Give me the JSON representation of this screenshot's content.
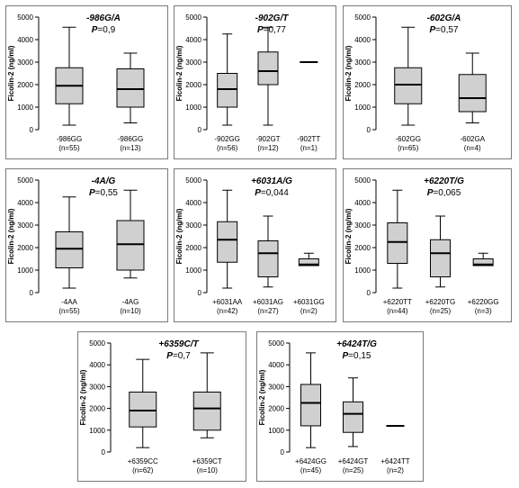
{
  "chart_data": [
    {
      "type": "box",
      "title": "-986G/A",
      "p_label": "P",
      "p_text": "=0,9",
      "ylabel": "Ficolin-2 (ng/ml)",
      "ylim": [
        0,
        5000
      ],
      "yticks": [
        "0",
        "1000",
        "2000",
        "3000",
        "4000",
        "5000"
      ],
      "categories": [
        {
          "label": "-986GG",
          "n": "(n=55)",
          "min": 200,
          "q1": 1150,
          "median": 1950,
          "q3": 2750,
          "max": 4550
        },
        {
          "label": "-986GG",
          "n": "(n=13)",
          "min": 300,
          "q1": 1000,
          "median": 1800,
          "q3": 2700,
          "max": 3400
        }
      ]
    },
    {
      "type": "box",
      "title": "-902G/T",
      "p_label": "P",
      "p_text": "=0,77",
      "ylabel": "Ficolin-2 (ng/ml)",
      "ylim": [
        0,
        5000
      ],
      "yticks": [
        "0",
        "1000",
        "2000",
        "3000",
        "4000",
        "5000"
      ],
      "categories": [
        {
          "label": "-902GG",
          "n": "(n=56)",
          "min": 200,
          "q1": 1000,
          "median": 1800,
          "q3": 2500,
          "max": 4250
        },
        {
          "label": "-902GT",
          "n": "(n=12)",
          "min": 200,
          "q1": 2000,
          "median": 2600,
          "q3": 3450,
          "max": 4550
        },
        {
          "label": "-902TT",
          "n": "(n=1)",
          "min": 3000,
          "q1": 3000,
          "median": 3000,
          "q3": 3000,
          "max": 3000
        }
      ]
    },
    {
      "type": "box",
      "title": "-602G/A",
      "p_label": "P",
      "p_text": "=0,57",
      "ylabel": "Ficolin-2 (ng/ml)",
      "ylim": [
        0,
        5000
      ],
      "yticks": [
        "0",
        "1000",
        "2000",
        "3000",
        "4000",
        "5000"
      ],
      "categories": [
        {
          "label": "-602GG",
          "n": "(n=65)",
          "min": 200,
          "q1": 1150,
          "median": 2000,
          "q3": 2750,
          "max": 4550
        },
        {
          "label": "-602GA",
          "n": "(n=4)",
          "min": 300,
          "q1": 800,
          "median": 1400,
          "q3": 2450,
          "max": 3400
        }
      ]
    },
    {
      "type": "box",
      "title": "-4A/G",
      "p_label": "P",
      "p_text": "=0,55",
      "ylabel": "Ficolin-2 (ng/ml)",
      "ylim": [
        0,
        5000
      ],
      "yticks": [
        "0",
        "1000",
        "2000",
        "3000",
        "4000",
        "5000"
      ],
      "categories": [
        {
          "label": "-4AA",
          "n": "(n=55)",
          "min": 200,
          "q1": 1100,
          "median": 1950,
          "q3": 2700,
          "max": 4250
        },
        {
          "label": "-4AG",
          "n": "(n=10)",
          "min": 650,
          "q1": 1000,
          "median": 2150,
          "q3": 3200,
          "max": 4550
        }
      ]
    },
    {
      "type": "box",
      "title": "+6031A/G",
      "p_label": "P",
      "p_text": "=0,044",
      "ylabel": "Ficolin-2 (ng/ml)",
      "ylim": [
        0,
        5000
      ],
      "yticks": [
        "0",
        "1000",
        "2000",
        "3000",
        "4000",
        "5000"
      ],
      "categories": [
        {
          "label": "+6031AA",
          "n": "(n=42)",
          "min": 200,
          "q1": 1350,
          "median": 2350,
          "q3": 3150,
          "max": 4550
        },
        {
          "label": "+6031AG",
          "n": "(n=27)",
          "min": 250,
          "q1": 700,
          "median": 1750,
          "q3": 2300,
          "max": 3400
        },
        {
          "label": "+6031GG",
          "n": "(n=2)",
          "min": 1200,
          "q1": 1200,
          "median": 1250,
          "q3": 1500,
          "max": 1750
        }
      ]
    },
    {
      "type": "box",
      "title": "+6220T/G",
      "p_label": "P",
      "p_text": "=0,065",
      "ylabel": "Ficolin-2 (ng/ml)",
      "ylim": [
        0,
        5000
      ],
      "yticks": [
        "0",
        "1000",
        "2000",
        "3000",
        "4000",
        "5000"
      ],
      "categories": [
        {
          "label": "+6220TT",
          "n": "(n=44)",
          "min": 200,
          "q1": 1300,
          "median": 2250,
          "q3": 3100,
          "max": 4550
        },
        {
          "label": "+6220TG",
          "n": "(n=25)",
          "min": 250,
          "q1": 700,
          "median": 1750,
          "q3": 2350,
          "max": 3400
        },
        {
          "label": "+6220GG",
          "n": "(n=3)",
          "min": 1200,
          "q1": 1200,
          "median": 1250,
          "q3": 1500,
          "max": 1750
        }
      ]
    },
    {
      "type": "box",
      "title": "+6359C/T",
      "p_label": "P",
      "p_text": "=0,7",
      "ylabel": "Ficolin-2 (ng/ml)",
      "ylim": [
        0,
        5000
      ],
      "yticks": [
        "0",
        "1000",
        "2000",
        "3000",
        "4000",
        "5000"
      ],
      "categories": [
        {
          "label": "+6359CC",
          "n": "(n=62)",
          "min": 200,
          "q1": 1150,
          "median": 1900,
          "q3": 2750,
          "max": 4250
        },
        {
          "label": "+6359CT",
          "n": "(n=10)",
          "min": 650,
          "q1": 1000,
          "median": 2000,
          "q3": 2750,
          "max": 4550
        }
      ]
    },
    {
      "type": "box",
      "title": "+6424T/G",
      "p_label": "P",
      "p_text": "=0,15",
      "ylabel": "Ficolin-2 (ng/ml)",
      "ylim": [
        0,
        5000
      ],
      "yticks": [
        "0",
        "1000",
        "2000",
        "3000",
        "4000",
        "5000"
      ],
      "categories": [
        {
          "label": "+6424GG",
          "n": "(n=45)",
          "min": 200,
          "q1": 1200,
          "median": 2250,
          "q3": 3100,
          "max": 4550
        },
        {
          "label": "+6424GT",
          "n": "(n=25)",
          "min": 250,
          "q1": 900,
          "median": 1750,
          "q3": 2300,
          "max": 3400
        },
        {
          "label": "+6424TT",
          "n": "(n=2)",
          "min": 1200,
          "q1": 1200,
          "median": 1200,
          "q3": 1200,
          "max": 1200
        }
      ]
    }
  ]
}
